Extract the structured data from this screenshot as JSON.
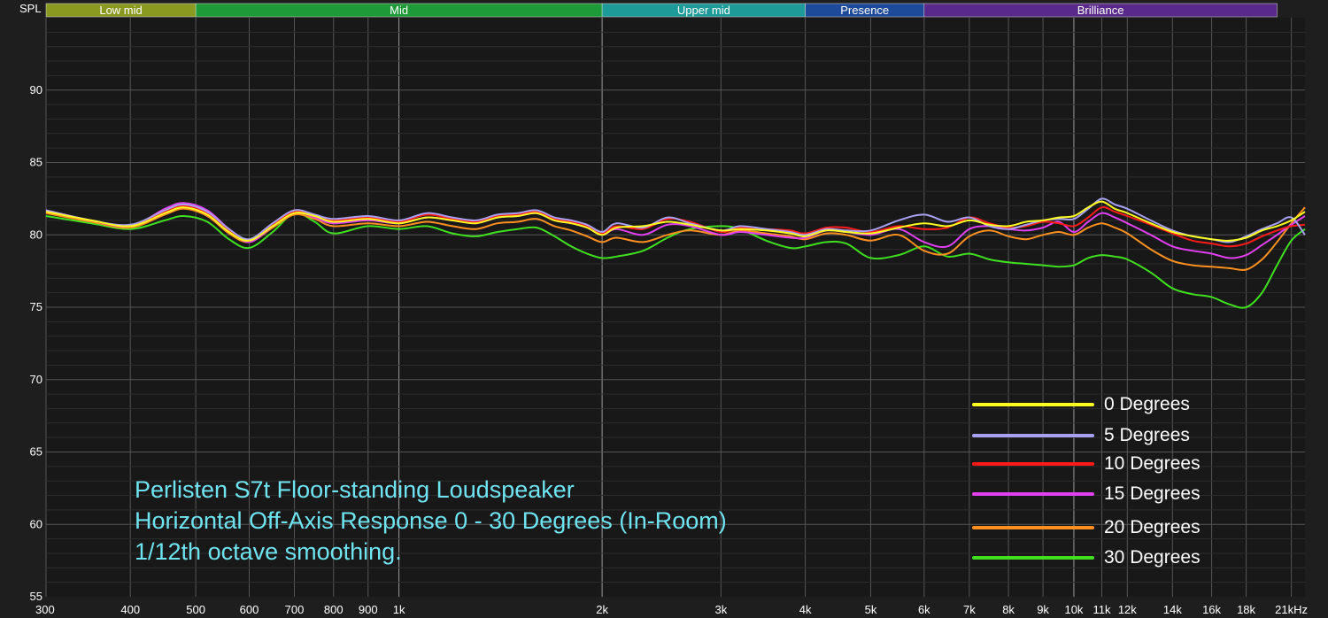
{
  "chart_data": {
    "type": "line",
    "ylabel": "SPL",
    "xscale": "log",
    "xlim": [
      300,
      22000
    ],
    "ylim": [
      55,
      95
    ],
    "grid": true,
    "legend_position": "bottom-right",
    "x_ticks": [
      {
        "v": 300,
        "label": "300"
      },
      {
        "v": 400,
        "label": "400"
      },
      {
        "v": 500,
        "label": "500"
      },
      {
        "v": 600,
        "label": "600"
      },
      {
        "v": 700,
        "label": "700"
      },
      {
        "v": 800,
        "label": "800"
      },
      {
        "v": 900,
        "label": "900"
      },
      {
        "v": 1000,
        "label": "1k"
      },
      {
        "v": 2000,
        "label": "2k"
      },
      {
        "v": 3000,
        "label": "3k"
      },
      {
        "v": 4000,
        "label": "4k"
      },
      {
        "v": 5000,
        "label": "5k"
      },
      {
        "v": 6000,
        "label": "6k"
      },
      {
        "v": 7000,
        "label": "7k"
      },
      {
        "v": 8000,
        "label": "8k"
      },
      {
        "v": 9000,
        "label": "9k"
      },
      {
        "v": 10000,
        "label": "10k"
      },
      {
        "v": 11000,
        "label": "11k"
      },
      {
        "v": 12000,
        "label": "12k"
      },
      {
        "v": 14000,
        "label": "14k"
      },
      {
        "v": 16000,
        "label": "16k"
      },
      {
        "v": 18000,
        "label": "18k"
      },
      {
        "v": 21000,
        "label": "21kHz"
      }
    ],
    "y_ticks": [
      55,
      60,
      65,
      70,
      75,
      80,
      85,
      90
    ],
    "bands": [
      {
        "label": "Low mid",
        "from": 300,
        "to": 500,
        "color": "#8a9a20"
      },
      {
        "label": "Mid",
        "from": 500,
        "to": 2000,
        "color": "#1e9a38"
      },
      {
        "label": "Upper mid",
        "from": 2000,
        "to": 4000,
        "color": "#1e9a98"
      },
      {
        "label": "Presence",
        "from": 4000,
        "to": 6000,
        "color": "#1e4a9a"
      },
      {
        "label": "Brilliance",
        "from": 6000,
        "to": 20000,
        "color": "#5a2a8a"
      }
    ],
    "series": [
      {
        "name": "0 Degrees",
        "color": "#ffff20",
        "x": [
          300,
          350,
          400,
          450,
          480,
          520,
          560,
          600,
          650,
          700,
          750,
          800,
          900,
          1000,
          1100,
          1200,
          1300,
          1400,
          1500,
          1600,
          1700,
          1800,
          1900,
          2000,
          2100,
          2300,
          2500,
          2700,
          3000,
          3200,
          3500,
          3800,
          4000,
          4300,
          4600,
          5000,
          5500,
          6000,
          6500,
          7000,
          7500,
          8000,
          8500,
          9000,
          9500,
          10000,
          10500,
          11000,
          11500,
          12000,
          13000,
          14000,
          15000,
          16000,
          17000,
          18000,
          19000,
          20000,
          21000,
          22000
        ],
        "y": [
          81.6,
          81.0,
          80.6,
          81.5,
          81.9,
          81.4,
          80.2,
          79.6,
          80.6,
          81.5,
          81.3,
          80.9,
          81.1,
          80.8,
          81.2,
          81.0,
          80.8,
          81.2,
          81.3,
          81.5,
          81.0,
          80.8,
          80.5,
          80.0,
          80.5,
          80.6,
          80.9,
          80.7,
          80.3,
          80.4,
          80.3,
          80.1,
          79.9,
          80.3,
          80.2,
          80.1,
          80.5,
          80.8,
          80.6,
          81.0,
          80.7,
          80.6,
          80.9,
          81.0,
          81.2,
          81.3,
          81.9,
          82.3,
          81.8,
          81.5,
          80.8,
          80.2,
          79.9,
          79.7,
          79.6,
          79.8,
          80.3,
          80.6,
          81.0,
          81.6
        ]
      },
      {
        "name": "5 Degrees",
        "color": "#a8a0f0",
        "x": [
          300,
          350,
          400,
          450,
          480,
          520,
          560,
          600,
          650,
          700,
          750,
          800,
          900,
          1000,
          1100,
          1200,
          1300,
          1400,
          1500,
          1600,
          1700,
          1800,
          1900,
          2000,
          2100,
          2300,
          2500,
          2700,
          3000,
          3200,
          3500,
          3800,
          4000,
          4300,
          4600,
          5000,
          5500,
          6000,
          6500,
          7000,
          7500,
          8000,
          8500,
          9000,
          9500,
          10000,
          10500,
          11000,
          11500,
          12000,
          13000,
          14000,
          15000,
          16000,
          17000,
          18000,
          19000,
          20000,
          21000,
          22000
        ],
        "y": [
          81.7,
          81.0,
          80.7,
          81.7,
          82.1,
          81.6,
          80.4,
          79.7,
          80.8,
          81.7,
          81.4,
          81.1,
          81.3,
          81.0,
          81.5,
          81.2,
          81.0,
          81.4,
          81.5,
          81.7,
          81.2,
          81.0,
          80.7,
          80.2,
          80.8,
          80.5,
          81.2,
          80.8,
          80.3,
          80.6,
          80.4,
          80.2,
          80.0,
          80.4,
          80.3,
          80.3,
          81.0,
          81.4,
          80.9,
          81.2,
          80.6,
          80.4,
          80.7,
          81.0,
          81.1,
          81.1,
          81.8,
          82.5,
          82.1,
          81.8,
          81.0,
          80.3,
          79.9,
          79.7,
          79.5,
          79.9,
          80.4,
          80.8,
          81.2,
          80.0
        ]
      },
      {
        "name": "10 Degrees",
        "color": "#ff1a1a",
        "x": [
          300,
          350,
          400,
          450,
          480,
          520,
          560,
          600,
          650,
          700,
          750,
          800,
          900,
          1000,
          1100,
          1200,
          1300,
          1400,
          1500,
          1600,
          1700,
          1800,
          1900,
          2000,
          2100,
          2300,
          2500,
          2700,
          3000,
          3200,
          3500,
          3800,
          4000,
          4300,
          4600,
          5000,
          5500,
          6000,
          6500,
          7000,
          7500,
          8000,
          8500,
          9000,
          9500,
          10000,
          10500,
          11000,
          11500,
          12000,
          13000,
          14000,
          15000,
          16000,
          17000,
          18000,
          19000,
          20000,
          21000,
          22000
        ],
        "y": [
          81.6,
          81.0,
          80.6,
          81.6,
          82.0,
          81.5,
          80.3,
          79.6,
          80.7,
          81.6,
          81.3,
          81.0,
          81.2,
          80.9,
          81.4,
          81.1,
          80.9,
          81.3,
          81.4,
          81.6,
          81.1,
          80.9,
          80.6,
          80.1,
          80.6,
          80.4,
          81.1,
          80.9,
          80.2,
          80.5,
          80.4,
          80.3,
          80.1,
          80.5,
          80.5,
          80.2,
          80.6,
          80.4,
          80.5,
          81.2,
          80.8,
          80.5,
          80.6,
          80.9,
          80.8,
          80.6,
          81.2,
          81.9,
          81.6,
          81.3,
          80.7,
          80.1,
          79.6,
          79.4,
          79.2,
          79.4,
          79.9,
          80.3,
          80.6,
          80.7
        ]
      },
      {
        "name": "15 Degrees",
        "color": "#e040f0",
        "x": [
          300,
          350,
          400,
          450,
          480,
          520,
          560,
          600,
          650,
          700,
          750,
          800,
          900,
          1000,
          1100,
          1200,
          1300,
          1400,
          1500,
          1600,
          1700,
          1800,
          1900,
          2000,
          2100,
          2300,
          2500,
          2700,
          3000,
          3200,
          3500,
          3800,
          4000,
          4300,
          4600,
          5000,
          5500,
          6000,
          6500,
          7000,
          7500,
          8000,
          8500,
          9000,
          9500,
          10000,
          10500,
          11000,
          11500,
          12000,
          13000,
          14000,
          15000,
          16000,
          17000,
          18000,
          19000,
          20000,
          21000,
          22000
        ],
        "y": [
          81.7,
          81.0,
          80.6,
          81.8,
          82.2,
          81.7,
          80.4,
          79.5,
          80.6,
          81.6,
          81.2,
          80.8,
          81.0,
          80.8,
          81.2,
          81.0,
          80.8,
          81.2,
          81.3,
          81.5,
          81.0,
          80.8,
          80.5,
          80.0,
          80.4,
          80.0,
          80.7,
          80.6,
          80.0,
          80.2,
          80.0,
          79.8,
          79.8,
          80.3,
          80.2,
          80.0,
          80.4,
          79.5,
          79.2,
          80.4,
          80.6,
          80.4,
          80.3,
          80.5,
          80.9,
          80.2,
          80.9,
          81.5,
          81.2,
          80.8,
          80.0,
          79.2,
          78.9,
          78.7,
          78.4,
          78.6,
          79.3,
          80.0,
          80.7,
          81.3
        ]
      },
      {
        "name": "20 Degrees",
        "color": "#ff9020",
        "x": [
          300,
          350,
          400,
          450,
          480,
          520,
          560,
          600,
          650,
          700,
          750,
          800,
          900,
          1000,
          1100,
          1200,
          1300,
          1400,
          1500,
          1600,
          1700,
          1800,
          1900,
          2000,
          2100,
          2300,
          2500,
          2700,
          3000,
          3200,
          3500,
          3800,
          4000,
          4300,
          4600,
          5000,
          5500,
          6000,
          6500,
          7000,
          7500,
          8000,
          8500,
          9000,
          9500,
          10000,
          10500,
          11000,
          11500,
          12000,
          13000,
          14000,
          15000,
          16000,
          17000,
          18000,
          19000,
          20000,
          21000,
          22000
        ],
        "y": [
          81.5,
          80.9,
          80.5,
          81.4,
          81.8,
          81.3,
          80.1,
          79.5,
          80.5,
          81.4,
          81.1,
          80.6,
          80.8,
          80.6,
          80.9,
          80.6,
          80.4,
          80.8,
          80.9,
          81.1,
          80.6,
          80.3,
          79.9,
          79.5,
          79.8,
          79.5,
          80.0,
          80.3,
          80.0,
          80.3,
          80.1,
          79.9,
          79.7,
          80.1,
          80.0,
          79.6,
          80.0,
          78.9,
          78.7,
          79.9,
          80.3,
          79.9,
          79.7,
          80.0,
          80.2,
          80.0,
          80.5,
          80.8,
          80.5,
          80.1,
          79.0,
          78.2,
          77.9,
          77.8,
          77.7,
          77.6,
          78.3,
          79.5,
          80.8,
          81.9
        ]
      },
      {
        "name": "30 Degrees",
        "color": "#40e020",
        "x": [
          300,
          350,
          400,
          450,
          480,
          520,
          560,
          600,
          650,
          700,
          750,
          800,
          900,
          1000,
          1100,
          1200,
          1300,
          1400,
          1500,
          1600,
          1700,
          1800,
          1900,
          2000,
          2100,
          2300,
          2500,
          2700,
          3000,
          3200,
          3500,
          3800,
          4000,
          4300,
          4600,
          5000,
          5500,
          6000,
          6500,
          7000,
          7500,
          8000,
          8500,
          9000,
          9500,
          10000,
          10500,
          11000,
          11500,
          12000,
          13000,
          14000,
          15000,
          16000,
          17000,
          18000,
          19000,
          20000,
          21000,
          22000
        ],
        "y": [
          81.3,
          80.8,
          80.4,
          81.0,
          81.3,
          80.9,
          79.7,
          79.1,
          80.2,
          81.5,
          80.9,
          80.1,
          80.6,
          80.4,
          80.6,
          80.1,
          79.9,
          80.2,
          80.4,
          80.5,
          79.9,
          79.2,
          78.7,
          78.4,
          78.5,
          78.9,
          79.8,
          80.4,
          80.6,
          80.4,
          79.6,
          79.1,
          79.2,
          79.5,
          79.4,
          78.4,
          78.6,
          79.2,
          78.5,
          78.7,
          78.3,
          78.1,
          78.0,
          77.9,
          77.8,
          77.9,
          78.4,
          78.6,
          78.5,
          78.3,
          77.4,
          76.3,
          75.9,
          75.7,
          75.2,
          75.0,
          76.0,
          77.9,
          79.6,
          80.4
        ]
      }
    ],
    "annotation": [
      "Perlisten S7t Floor-standing Loudspeaker",
      "Horizontal Off-Axis Response 0 - 30 Degrees (In-Room)",
      "1/12th octave smoothing."
    ]
  }
}
